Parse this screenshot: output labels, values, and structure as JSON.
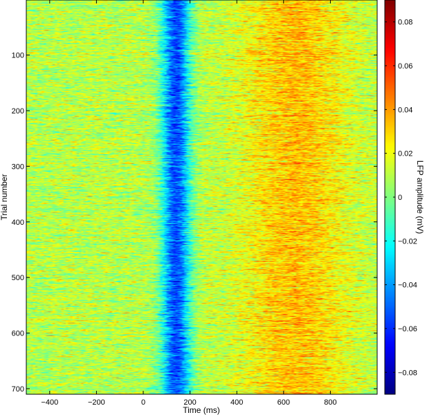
{
  "chart_data": {
    "type": "heatmap",
    "title": "",
    "xlabel": "Time (ms)",
    "ylabel": "Trial number",
    "xlim": [
      -500,
      1000
    ],
    "ylim": [
      1,
      710
    ],
    "y_reversed": true,
    "x_ticks": [
      -400,
      -200,
      0,
      200,
      400,
      600,
      800
    ],
    "x_tick_labels": [
      "−400",
      "−200",
      "0",
      "200",
      "400",
      "600",
      "800"
    ],
    "y_ticks": [
      100,
      200,
      300,
      400,
      500,
      600,
      700
    ],
    "y_tick_labels": [
      "100",
      "200",
      "300",
      "400",
      "500",
      "600",
      "700"
    ],
    "colorbar": {
      "label": "LFP amplitude (mV)",
      "range": [
        -0.09,
        0.09
      ],
      "ticks": [
        0.08,
        0.06,
        0.04,
        0.02,
        0,
        -0.02,
        -0.04,
        -0.06,
        -0.08
      ],
      "tick_labels": [
        "0.08",
        "0.06",
        "0.04",
        "0.02",
        "0",
        "−0.02",
        "−0.04",
        "−0.06",
        "−0.08"
      ],
      "colormap": "jet"
    },
    "pattern": {
      "baseline_mV": 0.01,
      "trough_center_ms": 140,
      "trough_halfwidth_ms": 60,
      "trough_min_mV": -0.055,
      "late_positive_center_ms": 650,
      "late_positive_peak_mV": 0.04,
      "noise_sd_mV": 0.018
    }
  }
}
